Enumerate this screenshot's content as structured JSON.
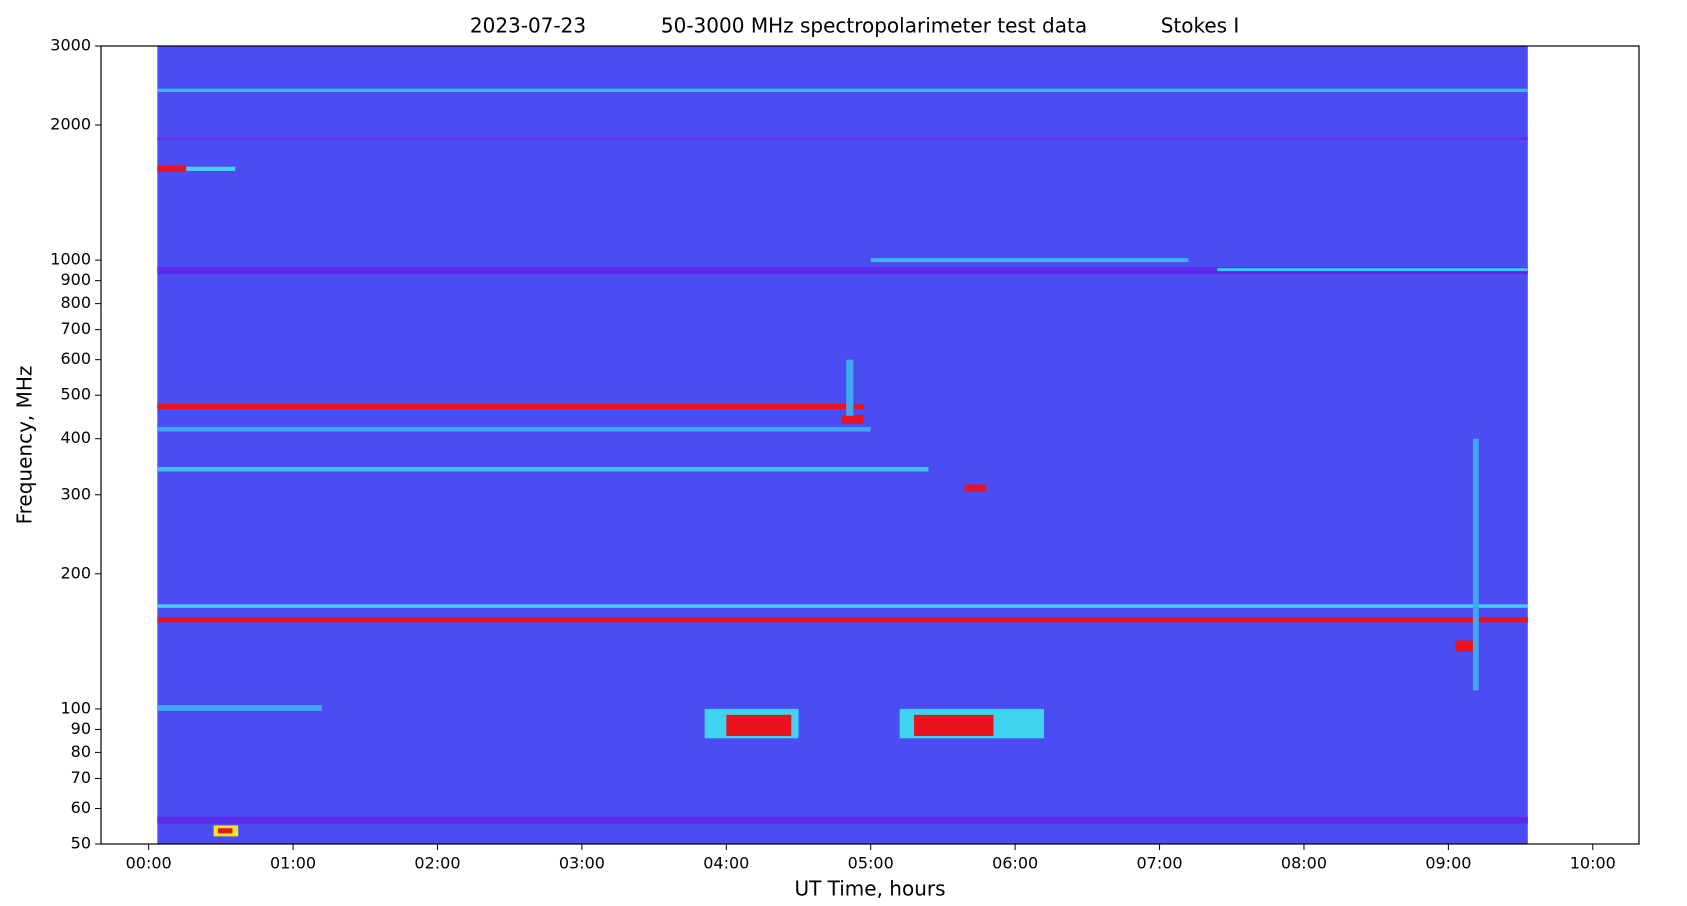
{
  "chart_data": {
    "type": "spectrogram",
    "title": [
      "2023-07-23",
      "50-3000 MHz spectropolarimeter test data",
      "Stokes I"
    ],
    "x_label": "UT Time, hours",
    "y_label": "Frequency, MHz",
    "xlim": [
      -0.33,
      10.32
    ],
    "ylim": [
      50,
      3000
    ],
    "log_y": true,
    "xticks": [
      {
        "value": 0,
        "label": "00:00"
      },
      {
        "value": 1,
        "label": "01:00"
      },
      {
        "value": 2,
        "label": "02:00"
      },
      {
        "value": 3,
        "label": "03:00"
      },
      {
        "value": 4,
        "label": "04:00"
      },
      {
        "value": 5,
        "label": "05:00"
      },
      {
        "value": 6,
        "label": "06:00"
      },
      {
        "value": 7,
        "label": "07:00"
      },
      {
        "value": 8,
        "label": "08:00"
      },
      {
        "value": 9,
        "label": "09:00"
      },
      {
        "value": 10,
        "label": "10:00"
      }
    ],
    "yticks": [
      50,
      60,
      70,
      80,
      90,
      100,
      200,
      300,
      400,
      500,
      600,
      700,
      800,
      900,
      1000,
      2000,
      3000
    ],
    "extent": {
      "x": [
        0.06,
        9.55
      ],
      "y": [
        50,
        3000
      ],
      "color": "#4b4df3"
    },
    "features": [
      {
        "x": [
          0.06,
          9.55
        ],
        "y": [
          930,
          965
        ],
        "color": "#5a2be8"
      },
      {
        "x": [
          0.06,
          9.55
        ],
        "y": [
          1850,
          1880
        ],
        "color": "#5e35ea"
      },
      {
        "x": [
          0.06,
          9.55
        ],
        "y": [
          55.5,
          57.5
        ],
        "color": "#5a2be8"
      },
      {
        "x": [
          0.06,
          9.55
        ],
        "y": [
          2370,
          2410
        ],
        "color": "#3fb4f0"
      },
      {
        "x": [
          0.06,
          9.55
        ],
        "y": [
          168,
          171
        ],
        "color": "#3fd3f0"
      },
      {
        "x": [
          0.06,
          9.55
        ],
        "y": [
          156,
          160
        ],
        "color": "#e8131e"
      },
      {
        "x": [
          0.06,
          4.95
        ],
        "y": [
          466,
          478
        ],
        "color": "#e8131e"
      },
      {
        "x": [
          0.06,
          5.0
        ],
        "y": [
          415,
          425
        ],
        "color": "#3fa8f0"
      },
      {
        "x": [
          0.06,
          5.4
        ],
        "y": [
          338,
          346
        ],
        "color": "#3fbcf0"
      },
      {
        "x": [
          0.06,
          1.2
        ],
        "y": [
          99,
          102
        ],
        "color": "#3fa8f0"
      },
      {
        "x": [
          0.06,
          0.26
        ],
        "y": [
          1575,
          1625
        ],
        "color": "#e8131e"
      },
      {
        "x": [
          0.26,
          0.6
        ],
        "y": [
          1580,
          1615
        ],
        "color": "#3fd3f0"
      },
      {
        "x": [
          0.45,
          0.62
        ],
        "y": [
          52,
          55
        ],
        "color": "#f3e32a"
      },
      {
        "x": [
          0.48,
          0.58
        ],
        "y": [
          52.8,
          54.2
        ],
        "color": "#e8131e"
      },
      {
        "x": [
          4.8,
          4.95
        ],
        "y": [
          432,
          452
        ],
        "color": "#e8131e"
      },
      {
        "x": [
          5.65,
          5.8
        ],
        "y": [
          305,
          316
        ],
        "color": "#e8131e"
      },
      {
        "x": [
          3.85,
          4.5
        ],
        "y": [
          86,
          100
        ],
        "color": "#3fd3f0"
      },
      {
        "x": [
          4.0,
          4.45
        ],
        "y": [
          87,
          97
        ],
        "color": "#e8131e"
      },
      {
        "x": [
          5.2,
          6.2
        ],
        "y": [
          86,
          100
        ],
        "color": "#3fd3f0"
      },
      {
        "x": [
          5.3,
          5.85
        ],
        "y": [
          87,
          97
        ],
        "color": "#e8131e"
      },
      {
        "x": [
          5.0,
          7.2
        ],
        "y": [
          990,
          1010
        ],
        "color": "#3fb4f0"
      },
      {
        "x": [
          7.4,
          9.55
        ],
        "y": [
          945,
          960
        ],
        "color": "#3fc4f0"
      },
      {
        "x": [
          9.05,
          9.2
        ],
        "y": [
          134,
          142
        ],
        "color": "#e8131e"
      },
      {
        "x": [
          9.17,
          9.21
        ],
        "y": [
          110,
          400
        ],
        "color": "#3fa8f0"
      },
      {
        "x": [
          4.83,
          4.88
        ],
        "y": [
          450,
          600
        ],
        "color": "#3fa8f0"
      }
    ]
  }
}
